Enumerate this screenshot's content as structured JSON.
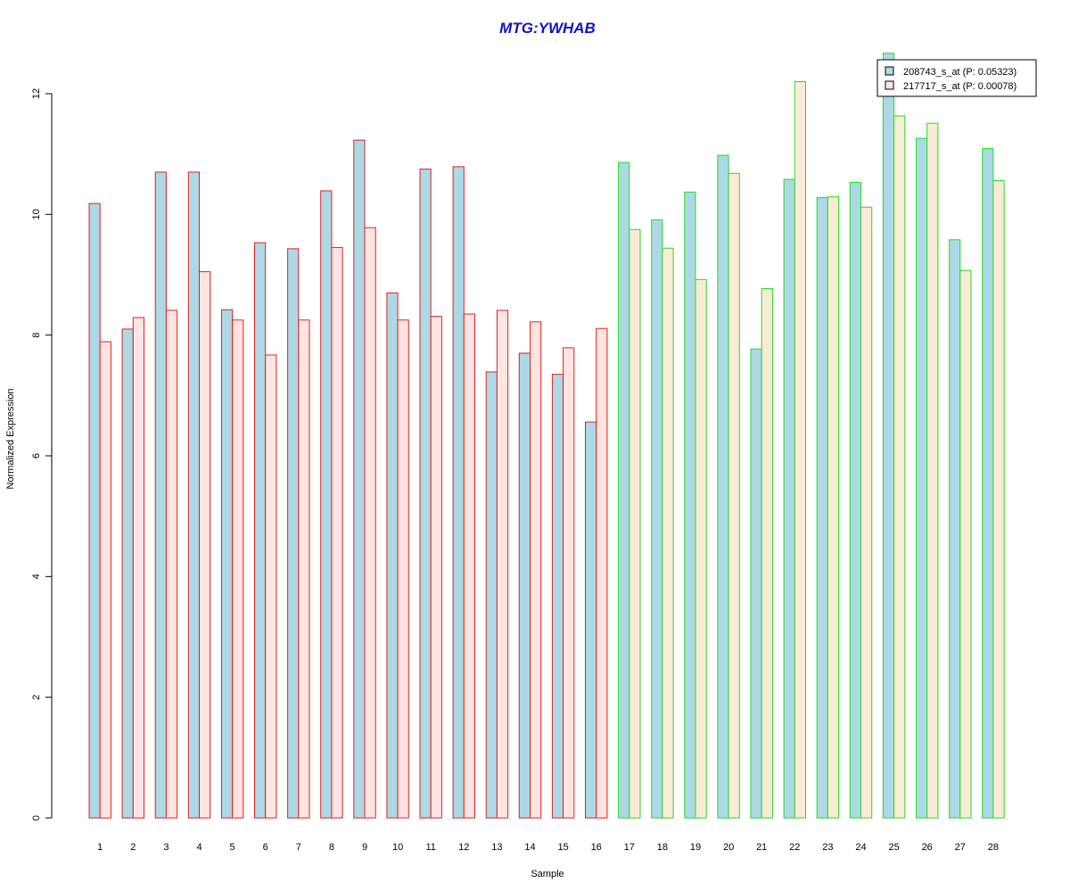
{
  "chart_data": {
    "type": "bar",
    "title": "MTG:YWHAB",
    "xlabel": "Sample",
    "ylabel": "Normalized Expression",
    "ylim": [
      0,
      12.6
    ],
    "yticks": [
      0,
      2,
      4,
      6,
      8,
      10,
      12
    ],
    "categories": [
      "1",
      "2",
      "3",
      "4",
      "5",
      "6",
      "7",
      "8",
      "9",
      "10",
      "11",
      "12",
      "13",
      "14",
      "15",
      "16",
      "17",
      "18",
      "19",
      "20",
      "21",
      "22",
      "23",
      "24",
      "25",
      "26",
      "27",
      "28"
    ],
    "group_border_colors": [
      "#dd2222",
      "#dd2222",
      "#dd2222",
      "#dd2222",
      "#dd2222",
      "#dd2222",
      "#dd2222",
      "#dd2222",
      "#dd2222",
      "#dd2222",
      "#dd2222",
      "#dd2222",
      "#dd2222",
      "#dd2222",
      "#dd2222",
      "#dd2222",
      "#22dd22",
      "#22dd22",
      "#22dd22",
      "#22dd22",
      "#22dd22",
      "#22dd22",
      "#22dd22",
      "#22dd22",
      "#22dd22",
      "#22dd22",
      "#22dd22",
      "#22dd22"
    ],
    "series": [
      {
        "name": "208743_s_at (P: 0.05323)",
        "fill": "#add8e6",
        "values": [
          10.18,
          8.1,
          10.7,
          10.7,
          8.42,
          9.53,
          9.43,
          10.39,
          11.23,
          8.7,
          10.75,
          10.79,
          7.39,
          7.7,
          7.35,
          6.56,
          10.86,
          9.91,
          10.37,
          10.98,
          7.77,
          10.58,
          10.28,
          10.53,
          12.67,
          11.26,
          9.58,
          11.09
        ]
      },
      {
        "name": "217717_s_at (P: 0.00078)",
        "fill": "#ffe4e1",
        "fill_alt": "#faebd7",
        "values": [
          7.89,
          8.29,
          8.41,
          9.05,
          8.25,
          7.67,
          8.25,
          9.45,
          9.78,
          8.25,
          8.31,
          8.35,
          8.41,
          8.22,
          7.79,
          8.11,
          9.75,
          9.44,
          8.92,
          10.68,
          8.77,
          12.2,
          10.29,
          10.12,
          11.63,
          11.51,
          9.07,
          10.56
        ]
      }
    ],
    "legend_position": "top-right"
  }
}
